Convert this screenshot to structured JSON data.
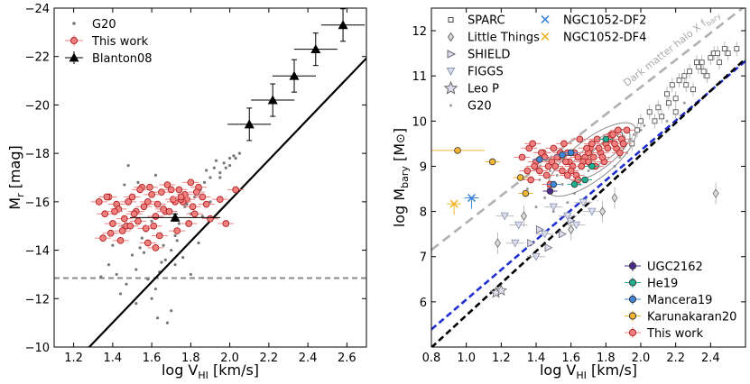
{
  "chart_data": [
    {
      "type": "scatter",
      "xlabel": "log V",
      "xlabel_sub": "HI",
      "xlabel_unit": " [km/s]",
      "ylabel": "M",
      "ylabel_sub": "r",
      "ylabel_unit": " [mag]",
      "xlim": [
        1.1,
        2.7
      ],
      "ylim": [
        -10,
        -24
      ],
      "xticks": [
        "1.2",
        "1.4",
        "1.6",
        "1.8",
        "2.0",
        "2.2",
        "2.4",
        "2.6"
      ],
      "xtick_values": [
        1.2,
        1.4,
        1.6,
        1.8,
        2.0,
        2.2,
        2.4,
        2.6
      ],
      "yticks": [
        "−10",
        "−12",
        "−14",
        "−16",
        "−18",
        "−20",
        "−22",
        "−24"
      ],
      "ytick_values": [
        -10,
        -12,
        -14,
        -16,
        -18,
        -20,
        -22,
        -24
      ],
      "legend": [
        "G20",
        "This work",
        "Blanton08"
      ],
      "legend_position": "top-left",
      "hline_y": -12.85,
      "fit_line": {
        "slope": -8.4,
        "intercept": 0.75
      },
      "series": [
        {
          "name": "Blanton08",
          "x": [
            1.72,
            2.1,
            2.22,
            2.33,
            2.44,
            2.58
          ],
          "y": [
            -15.35,
            -19.2,
            -20.2,
            -21.2,
            -22.3,
            -23.3
          ]
        },
        {
          "name": "This work",
          "x": [
            1.38,
            1.42,
            1.35,
            1.55,
            1.62,
            1.47,
            1.52,
            1.58,
            1.65,
            1.7,
            1.4,
            1.45,
            1.5,
            1.56,
            1.6,
            1.68,
            1.74,
            1.8,
            1.84,
            1.78,
            1.36,
            1.43,
            1.48,
            1.53,
            1.63,
            1.67,
            1.72,
            1.77,
            1.83,
            1.88,
            1.39,
            1.46,
            1.51,
            1.57,
            1.61,
            1.66,
            1.71,
            1.76,
            1.81,
            1.86,
            1.9,
            1.41,
            1.54,
            1.64,
            1.73,
            1.79,
            1.98,
            2.03,
            1.33,
            1.37,
            1.44,
            1.49,
            1.59,
            1.69,
            1.75,
            1.82,
            1.95,
            1.58,
            1.62,
            1.75
          ],
          "y": [
            -16.2,
            -15.9,
            -14.5,
            -16.6,
            -15.4,
            -15.0,
            -15.6,
            -16.0,
            -16.4,
            -16.5,
            -15.1,
            -14.8,
            -16.2,
            -15.8,
            -16.3,
            -16.7,
            -16.5,
            -16.8,
            -16.6,
            -16.1,
            -15.5,
            -15.7,
            -16.0,
            -15.2,
            -15.9,
            -15.6,
            -16.0,
            -16.3,
            -16.4,
            -15.9,
            -14.7,
            -15.3,
            -15.5,
            -14.9,
            -15.0,
            -15.7,
            -16.1,
            -16.0,
            -15.8,
            -16.2,
            -15.3,
            -15.6,
            -16.5,
            -14.6,
            -14.8,
            -15.1,
            -15.1,
            -16.5,
            -16.0,
            -16.2,
            -14.4,
            -15.0,
            -16.6,
            -15.6,
            -16.1,
            -15.5,
            -16.1,
            -14.3,
            -14.1,
            -16.2
          ]
        }
      ]
    },
    {
      "type": "scatter",
      "xlabel": "log V",
      "xlabel_sub": "HI",
      "xlabel_unit": " [km/s]",
      "ylabel": "log M",
      "ylabel_sub": "bary",
      "ylabel_unit": " [M",
      "ylabel_sun": "⊙",
      "ylabel_close": "]",
      "xlim": [
        0.8,
        2.6
      ],
      "ylim": [
        5.0,
        12.5
      ],
      "xticks": [
        "0.8",
        "1.0",
        "1.2",
        "1.4",
        "1.6",
        "1.8",
        "2.0",
        "2.2",
        "2.4"
      ],
      "xtick_values": [
        0.8,
        1.0,
        1.2,
        1.4,
        1.6,
        1.8,
        2.0,
        2.2,
        2.4
      ],
      "yticks": [
        "6",
        "7",
        "8",
        "9",
        "10",
        "11",
        "12"
      ],
      "ytick_values": [
        6,
        7,
        8,
        9,
        10,
        11,
        12
      ],
      "annotation": "Dark matter halo X f",
      "annotation_sub": "bary",
      "legend_top": [
        "SPARC",
        "Little Things",
        "SHIELD",
        "FIGGS",
        "Leo P",
        "G20",
        "NGC1052-DF2",
        "NGC1052-DF4"
      ],
      "legend_bottom": [
        "UGC2162",
        "He19",
        "Mancera19",
        "Karunakaran20",
        "This work"
      ],
      "legend_position": "top-left and bottom-right",
      "lines": [
        {
          "name": "Dark matter halo",
          "style": "gray-dashed",
          "slope": 3.0,
          "intercept": 4.75
        },
        {
          "name": "blue fit",
          "style": "blue-dashed",
          "slope": 3.3,
          "intercept": 2.75
        },
        {
          "name": "black fit",
          "style": "black-dashed",
          "slope": 3.55,
          "intercept": 2.15
        }
      ],
      "series": [
        {
          "name": "UGC2162",
          "x": [
            1.48
          ],
          "y": [
            8.45
          ]
        },
        {
          "name": "He19",
          "x": [
            1.62,
            1.68,
            1.72,
            1.8
          ],
          "y": [
            8.6,
            8.7,
            9.0,
            9.6
          ]
        },
        {
          "name": "Mancera19",
          "x": [
            1.42,
            1.55,
            1.6,
            1.5
          ],
          "y": [
            9.15,
            9.25,
            9.3,
            8.6
          ]
        },
        {
          "name": "Karunakaran20",
          "x": [
            0.95,
            1.15,
            1.31,
            1.34
          ],
          "y": [
            9.35,
            9.1,
            8.75,
            8.4
          ]
        },
        {
          "name": "NGC1052-DF2",
          "x": [
            1.03
          ],
          "y": [
            8.3
          ]
        },
        {
          "name": "NGC1052-DF4",
          "x": [
            0.93
          ],
          "y": [
            8.17
          ]
        },
        {
          "name": "Leo P",
          "x": [
            1.17,
            1.2
          ],
          "y": [
            6.2,
            6.25
          ]
        },
        {
          "name": "This work",
          "x": [
            1.32,
            1.36,
            1.4,
            1.44,
            1.47,
            1.5,
            1.53,
            1.56,
            1.59,
            1.62,
            1.65,
            1.68,
            1.71,
            1.74,
            1.77,
            1.8,
            1.83,
            1.86,
            1.89,
            1.92,
            1.35,
            1.39,
            1.43,
            1.46,
            1.49,
            1.52,
            1.55,
            1.58,
            1.61,
            1.64,
            1.67,
            1.7,
            1.73,
            1.76,
            1.79,
            1.82,
            1.85,
            1.88,
            1.38,
            1.42,
            1.45,
            1.51,
            1.54,
            1.57,
            1.6,
            1.63,
            1.66,
            1.69,
            1.72,
            1.75,
            1.78,
            1.81,
            1.84,
            1.87,
            1.9,
            1.37,
            1.48,
            1.58,
            1.64,
            1.7
          ],
          "y": [
            9.2,
            9.4,
            9.1,
            9.3,
            9.0,
            9.4,
            9.2,
            9.5,
            9.1,
            9.3,
            9.6,
            9.2,
            9.4,
            9.0,
            9.3,
            9.5,
            9.7,
            9.4,
            9.6,
            9.8,
            8.9,
            9.0,
            9.3,
            8.8,
            9.1,
            9.2,
            8.9,
            9.3,
            9.0,
            9.2,
            9.1,
            9.3,
            9.2,
            9.4,
            9.1,
            9.6,
            9.5,
            9.3,
            9.5,
            8.9,
            9.2,
            9.0,
            9.3,
            9.1,
            8.9,
            8.8,
            9.0,
            9.4,
            9.5,
            9.6,
            9.2,
            9.4,
            9.7,
            9.8,
            9.5,
            8.7,
            8.6,
            8.8,
            8.7,
            9.1
          ]
        },
        {
          "name": "SPARC",
          "x": [
            1.88,
            1.95,
            2.0,
            2.05,
            2.1,
            2.12,
            2.15,
            2.18,
            2.2,
            2.22,
            2.25,
            2.28,
            2.3,
            2.33,
            2.35,
            2.38,
            2.4,
            2.42,
            2.45,
            2.48,
            2.5,
            2.55,
            2.2,
            2.26,
            2.32,
            2.36,
            2.44,
            1.98,
            2.08,
            2.16
          ],
          "y": [
            9.7,
            9.5,
            10.0,
            10.2,
            10.3,
            10.1,
            10.6,
            10.8,
            10.5,
            10.9,
            11.0,
            11.1,
            10.7,
            11.2,
            11.3,
            11.0,
            11.4,
            11.5,
            11.3,
            11.6,
            11.5,
            11.6,
            10.2,
            10.8,
            11.3,
            11.1,
            11.5,
            9.8,
            10.0,
            10.4
          ]
        },
        {
          "name": "Little Things",
          "x": [
            1.18,
            1.33,
            1.6,
            1.78,
            1.85,
            2.43
          ],
          "y": [
            7.3,
            7.9,
            7.6,
            8.0,
            8.3,
            8.4
          ]
        },
        {
          "name": "SHIELD",
          "x": [
            1.37,
            1.42,
            1.55,
            1.6,
            1.47
          ],
          "y": [
            7.3,
            7.6,
            7.5,
            7.8,
            7.2
          ]
        },
        {
          "name": "FIGGS",
          "x": [
            1.22,
            1.3,
            1.45,
            1.5,
            1.58,
            1.63,
            1.67,
            1.72,
            1.28,
            1.4
          ],
          "y": [
            7.9,
            7.7,
            7.5,
            8.1,
            7.9,
            7.7,
            8.2,
            8.0,
            7.3,
            7.0
          ]
        },
        {
          "name": "G20",
          "x": [
            1.35,
            1.42,
            1.48,
            1.55,
            1.6,
            1.66,
            1.72,
            1.78,
            1.84,
            1.9,
            1.96,
            2.02,
            1.45,
            1.52,
            1.62,
            1.7,
            1.8,
            1.88,
            1.94,
            2.0,
            1.4,
            1.58,
            1.76,
            1.92,
            2.06,
            2.15,
            2.25,
            1.5,
            1.65,
            1.85
          ],
          "y": [
            8.5,
            8.7,
            8.9,
            8.6,
            9.0,
            9.2,
            9.3,
            9.5,
            9.6,
            9.4,
            9.7,
            9.9,
            8.3,
            8.8,
            8.4,
            8.9,
            9.1,
            9.2,
            9.6,
            9.8,
            8.1,
            8.2,
            9.0,
            9.3,
            9.5,
            10.0,
            10.4,
            8.0,
            8.6,
            9.0
          ]
        }
      ]
    }
  ],
  "g20_left": {
    "x": [
      1.4,
      1.45,
      1.5,
      1.55,
      1.6,
      1.65,
      1.7,
      1.75,
      1.8,
      1.85,
      1.9,
      1.95,
      2.0,
      2.05,
      1.42,
      1.47,
      1.52,
      1.57,
      1.62,
      1.67,
      1.72,
      1.77,
      1.82,
      1.87,
      1.92,
      1.97,
      2.02,
      1.6,
      1.7,
      1.8,
      1.9,
      1.95,
      2.0,
      2.03,
      1.88,
      1.93,
      1.98,
      1.83,
      1.78,
      1.73,
      1.48,
      1.53,
      1.58,
      1.63,
      1.68,
      1.52,
      1.62,
      1.72,
      1.66,
      1.56,
      1.74,
      1.64,
      1.54,
      1.44,
      1.84,
      1.38,
      1.34,
      1.46,
      1.76,
      1.86
    ],
    "y": [
      -14.2,
      -15.0,
      -13.8,
      -14.5,
      -15.2,
      -13.5,
      -14.0,
      -16.0,
      -15.5,
      -16.5,
      -17.0,
      -17.2,
      -17.8,
      -18.0,
      -13.0,
      -12.6,
      -13.2,
      -14.8,
      -12.4,
      -13.6,
      -14.6,
      -15.8,
      -16.2,
      -16.8,
      -17.4,
      -17.6,
      -17.9,
      -12.0,
      -11.5,
      -13.0,
      -16.0,
      -17.0,
      -17.5,
      -17.8,
      -17.3,
      -17.7,
      -17.4,
      -16.6,
      -15.9,
      -14.4,
      -17.5,
      -16.8,
      -12.8,
      -11.2,
      -11.0,
      -11.8,
      -17.1,
      -13.4,
      -14.2,
      -13.9,
      -15.1,
      -13.1,
      -14.1,
      -12.2,
      -14.3,
      -13.4,
      -12.9,
      -16.7,
      -13.7,
      -15.4
    ]
  },
  "colors": {
    "this_work_face": "#f08080",
    "this_work_edge": "#b02020",
    "g20": "#777777",
    "ugc2162": "#4b2a8c",
    "he19": "#20b090",
    "mancera19": "#3f86d8",
    "karunakaran20": "#f2b530",
    "df2": "#3f86d8",
    "df4": "#f2b530",
    "blue_line": "#1f2fd0",
    "gray_line": "#b0b0b0"
  }
}
